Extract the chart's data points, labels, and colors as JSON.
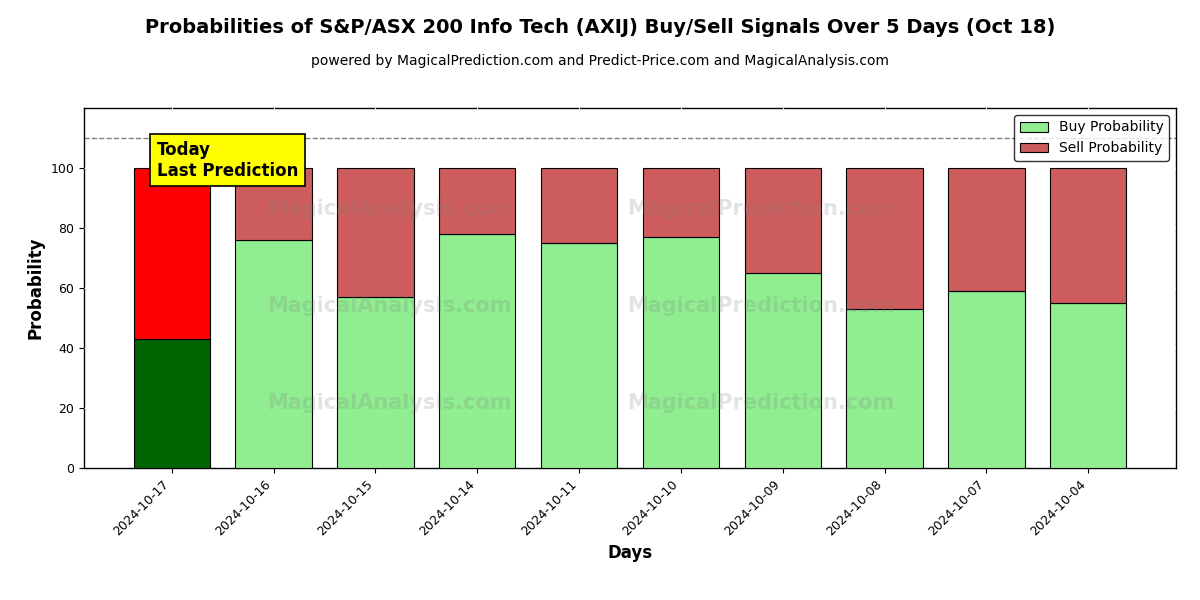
{
  "title": "Probabilities of S&P/ASX 200 Info Tech (AXIJ) Buy/Sell Signals Over 5 Days (Oct 18)",
  "subtitle": "powered by MagicalPrediction.com and Predict-Price.com and MagicalAnalysis.com",
  "xlabel": "Days",
  "ylabel": "Probability",
  "categories": [
    "2024-10-17",
    "2024-10-16",
    "2024-10-15",
    "2024-10-14",
    "2024-10-11",
    "2024-10-10",
    "2024-10-09",
    "2024-10-08",
    "2024-10-07",
    "2024-10-04"
  ],
  "buy_values": [
    43,
    76,
    57,
    78,
    75,
    77,
    65,
    53,
    59,
    55
  ],
  "sell_values": [
    57,
    24,
    43,
    22,
    25,
    23,
    35,
    47,
    41,
    45
  ],
  "buy_colors": [
    "#006400",
    "#90EE90",
    "#90EE90",
    "#90EE90",
    "#90EE90",
    "#90EE90",
    "#90EE90",
    "#90EE90",
    "#90EE90",
    "#90EE90"
  ],
  "sell_colors": [
    "#FF0000",
    "#CD5C5C",
    "#CD5C5C",
    "#CD5C5C",
    "#CD5C5C",
    "#CD5C5C",
    "#CD5C5C",
    "#CD5C5C",
    "#CD5C5C",
    "#CD5C5C"
  ],
  "legend_buy_color": "#90EE90",
  "legend_sell_color": "#CD5C5C",
  "annotation_text": "Today\nLast Prediction",
  "annotation_bg": "#FFFF00",
  "dashed_line_y": 110,
  "ylim": [
    0,
    120
  ],
  "yticks": [
    0,
    20,
    40,
    60,
    80,
    100
  ],
  "bar_width": 0.75,
  "figsize": [
    12.0,
    6.0
  ],
  "dpi": 100,
  "title_fontsize": 14,
  "subtitle_fontsize": 10,
  "axis_label_fontsize": 12,
  "tick_fontsize": 9,
  "legend_fontsize": 10
}
